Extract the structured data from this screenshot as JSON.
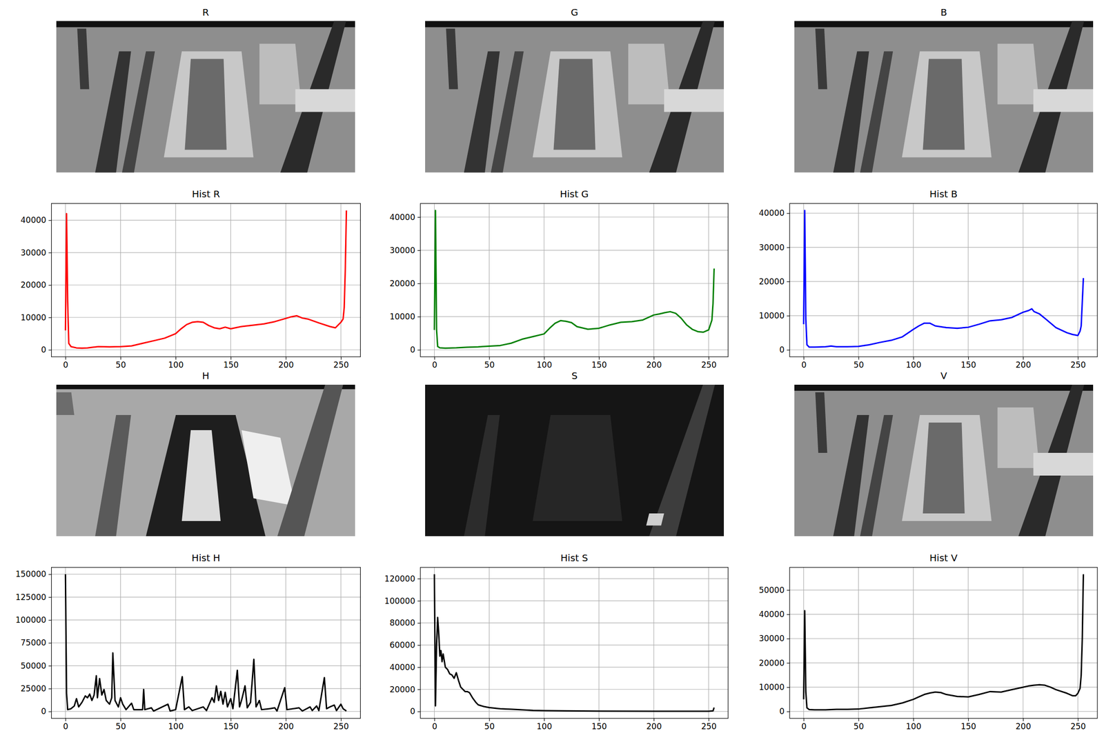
{
  "images": [
    {
      "title": "R"
    },
    {
      "title": "G"
    },
    {
      "title": "B"
    },
    {
      "title": "H"
    },
    {
      "title": "S"
    },
    {
      "title": "V"
    }
  ],
  "chart_data": [
    {
      "type": "line",
      "title": "Hist R",
      "color": "#ff0000",
      "grid": true,
      "xlim": [
        -12.75,
        267.75
      ],
      "xticks": [
        0,
        50,
        100,
        150,
        200,
        250
      ],
      "ylim": [
        -2150,
        45150
      ],
      "yticks": [
        0,
        10000,
        20000,
        30000,
        40000
      ],
      "x": [
        0,
        1,
        2,
        3,
        5,
        10,
        15,
        20,
        25,
        30,
        40,
        50,
        60,
        70,
        80,
        90,
        100,
        105,
        110,
        115,
        120,
        125,
        130,
        135,
        140,
        145,
        150,
        160,
        170,
        180,
        190,
        200,
        205,
        210,
        215,
        220,
        230,
        240,
        245,
        250,
        252,
        253,
        254,
        255
      ],
      "values": [
        6000,
        42000,
        15000,
        2000,
        1000,
        600,
        500,
        600,
        800,
        1000,
        900,
        1000,
        1200,
        2000,
        2800,
        3600,
        5000,
        6500,
        7800,
        8500,
        8700,
        8500,
        7500,
        6800,
        6500,
        7000,
        6500,
        7200,
        7600,
        8000,
        8700,
        9700,
        10200,
        10500,
        9800,
        9500,
        8300,
        7200,
        6800,
        8500,
        9500,
        13000,
        25000,
        43000
      ]
    },
    {
      "type": "line",
      "title": "Hist G",
      "color": "#008000",
      "grid": true,
      "xlim": [
        -12.75,
        267.75
      ],
      "xticks": [
        0,
        50,
        100,
        150,
        200,
        250
      ],
      "ylim": [
        -2100,
        44100
      ],
      "yticks": [
        0,
        10000,
        20000,
        30000,
        40000
      ],
      "x": [
        0,
        1,
        2,
        3,
        5,
        10,
        20,
        30,
        40,
        50,
        60,
        70,
        80,
        90,
        100,
        105,
        110,
        115,
        120,
        125,
        130,
        140,
        150,
        160,
        170,
        180,
        190,
        200,
        205,
        210,
        215,
        220,
        225,
        230,
        235,
        240,
        245,
        250,
        253,
        254,
        255
      ],
      "values": [
        6000,
        42000,
        6000,
        1000,
        600,
        500,
        600,
        800,
        900,
        1100,
        1300,
        2000,
        3200,
        4000,
        4800,
        6500,
        8000,
        8800,
        8600,
        8200,
        7000,
        6200,
        6500,
        7500,
        8300,
        8500,
        9000,
        10500,
        10800,
        11200,
        11500,
        11000,
        9500,
        7500,
        6200,
        5500,
        5300,
        6000,
        9000,
        14000,
        24500
      ]
    },
    {
      "type": "line",
      "title": "Hist B",
      "color": "#0000ff",
      "grid": true,
      "xlim": [
        -12.75,
        267.75
      ],
      "xticks": [
        0,
        50,
        100,
        150,
        200,
        250
      ],
      "ylim": [
        -2040,
        42840
      ],
      "yticks": [
        0,
        10000,
        20000,
        30000,
        40000
      ],
      "x": [
        0,
        1,
        2,
        3,
        5,
        10,
        20,
        25,
        30,
        40,
        50,
        60,
        70,
        80,
        90,
        100,
        105,
        110,
        115,
        120,
        130,
        140,
        150,
        160,
        170,
        180,
        190,
        200,
        205,
        208,
        210,
        215,
        220,
        230,
        240,
        245,
        250,
        252,
        253,
        255
      ],
      "values": [
        7500,
        40800,
        9000,
        1500,
        800,
        800,
        900,
        1100,
        900,
        900,
        1000,
        1500,
        2200,
        2800,
        3800,
        6000,
        7000,
        7800,
        7800,
        7000,
        6500,
        6300,
        6600,
        7500,
        8500,
        8800,
        9500,
        11000,
        11500,
        12000,
        11200,
        10500,
        9200,
        6500,
        5000,
        4500,
        4200,
        5500,
        7000,
        21000
      ]
    },
    {
      "type": "line",
      "title": "Hist H",
      "color": "#000000",
      "grid": true,
      "xlim": [
        -12.75,
        267.75
      ],
      "xticks": [
        0,
        50,
        100,
        150,
        200,
        250
      ],
      "ylim": [
        -7500,
        157500
      ],
      "yticks": [
        0,
        25000,
        50000,
        75000,
        100000,
        125000,
        150000
      ],
      "x": [
        0,
        1,
        2,
        5,
        8,
        10,
        12,
        15,
        18,
        20,
        22,
        24,
        26,
        28,
        29,
        31,
        33,
        35,
        37,
        40,
        42,
        43,
        45,
        48,
        50,
        52,
        55,
        60,
        62,
        70,
        71,
        72,
        78,
        80,
        93,
        95,
        100,
        106,
        108,
        112,
        115,
        125,
        128,
        133,
        135,
        137,
        139,
        141,
        143,
        145,
        147,
        150,
        152,
        156,
        158,
        160,
        163,
        165,
        168,
        171,
        173,
        176,
        178,
        185,
        190,
        192,
        199,
        201,
        212,
        215,
        222,
        224,
        228,
        230,
        235,
        237,
        240,
        244,
        246,
        250,
        252,
        255
      ],
      "values": [
        150000,
        20000,
        2000,
        3000,
        6000,
        14000,
        5000,
        10000,
        17000,
        15000,
        19000,
        12000,
        18000,
        39000,
        15000,
        36000,
        18000,
        24000,
        12000,
        8000,
        15000,
        64000,
        12000,
        5000,
        15000,
        8000,
        2000,
        9000,
        2000,
        2000,
        24000,
        2000,
        4000,
        500,
        8000,
        500,
        2000,
        38000,
        2000,
        5000,
        1000,
        5000,
        1000,
        15000,
        10000,
        28000,
        12000,
        22000,
        8000,
        21000,
        5000,
        14000,
        3000,
        45000,
        5000,
        13000,
        28000,
        4000,
        10000,
        57000,
        5000,
        12000,
        2000,
        3000,
        4000,
        500,
        26000,
        2000,
        4000,
        500,
        5000,
        1000,
        6000,
        1000,
        37000,
        3000,
        5000,
        7000,
        1000,
        8000,
        3000,
        500
      ]
    },
    {
      "type": "line",
      "title": "Hist S",
      "color": "#000000",
      "grid": true,
      "xlim": [
        -12.75,
        267.75
      ],
      "xticks": [
        0,
        50,
        100,
        150,
        200,
        250
      ],
      "ylim": [
        -6200,
        130200
      ],
      "yticks": [
        0,
        20000,
        40000,
        60000,
        80000,
        100000,
        120000
      ],
      "x": [
        0,
        1,
        2,
        3,
        4,
        5,
        6,
        7,
        8,
        10,
        12,
        14,
        16,
        18,
        20,
        22,
        24,
        26,
        28,
        30,
        32,
        35,
        38,
        40,
        45,
        50,
        60,
        70,
        80,
        90,
        100,
        120,
        150,
        200,
        250,
        254,
        255
      ],
      "values": [
        124000,
        5000,
        60000,
        85000,
        70000,
        50000,
        55000,
        45000,
        52000,
        40000,
        38000,
        34000,
        33000,
        30000,
        35000,
        28000,
        22000,
        20000,
        18000,
        18000,
        17000,
        12000,
        8000,
        6000,
        4500,
        3500,
        2500,
        2000,
        1500,
        1000,
        800,
        500,
        300,
        200,
        200,
        500,
        3500
      ]
    },
    {
      "type": "line",
      "title": "Hist V",
      "color": "#000000",
      "grid": true,
      "xlim": [
        -12.75,
        267.75
      ],
      "xticks": [
        0,
        50,
        100,
        150,
        200,
        250
      ],
      "ylim": [
        -2825,
        59325
      ],
      "yticks": [
        0,
        10000,
        20000,
        30000,
        40000,
        50000
      ],
      "x": [
        0,
        1,
        2,
        3,
        5,
        10,
        20,
        30,
        40,
        50,
        60,
        70,
        80,
        90,
        100,
        105,
        110,
        115,
        120,
        125,
        130,
        140,
        150,
        160,
        170,
        180,
        190,
        200,
        205,
        210,
        215,
        220,
        225,
        230,
        240,
        245,
        248,
        250,
        252,
        253,
        254,
        255
      ],
      "values": [
        5000,
        41500,
        8000,
        1500,
        800,
        700,
        700,
        900,
        900,
        1000,
        1500,
        2000,
        2500,
        3500,
        5000,
        6000,
        7000,
        7600,
        8000,
        7800,
        7000,
        6200,
        6000,
        7000,
        8200,
        8000,
        9000,
        10000,
        10500,
        10800,
        11000,
        10800,
        10000,
        9000,
        7500,
        6500,
        6500,
        7500,
        9500,
        15000,
        30000,
        56500
      ]
    }
  ]
}
